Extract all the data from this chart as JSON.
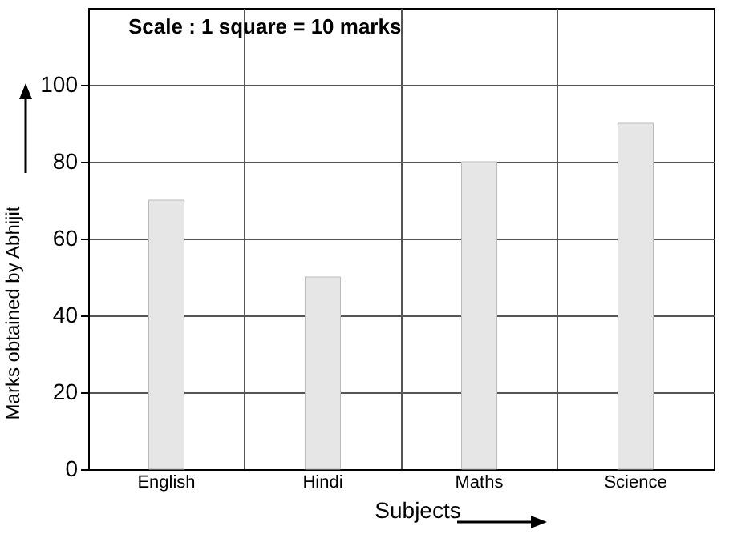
{
  "chart_data": {
    "type": "bar",
    "xlabel": "Subjects",
    "ylabel": "Marks obtained by Abhijit",
    "annotations": [
      "Scale : 1 square = 10 marks"
    ],
    "categories": [
      "English",
      "Hindi",
      "Maths",
      "Science"
    ],
    "values": [
      70,
      50,
      80,
      90
    ],
    "color": "#e6e6e6",
    "ylim": [
      0,
      120
    ],
    "yticks": [
      0,
      20,
      40,
      60,
      80,
      100
    ],
    "grid": true
  }
}
